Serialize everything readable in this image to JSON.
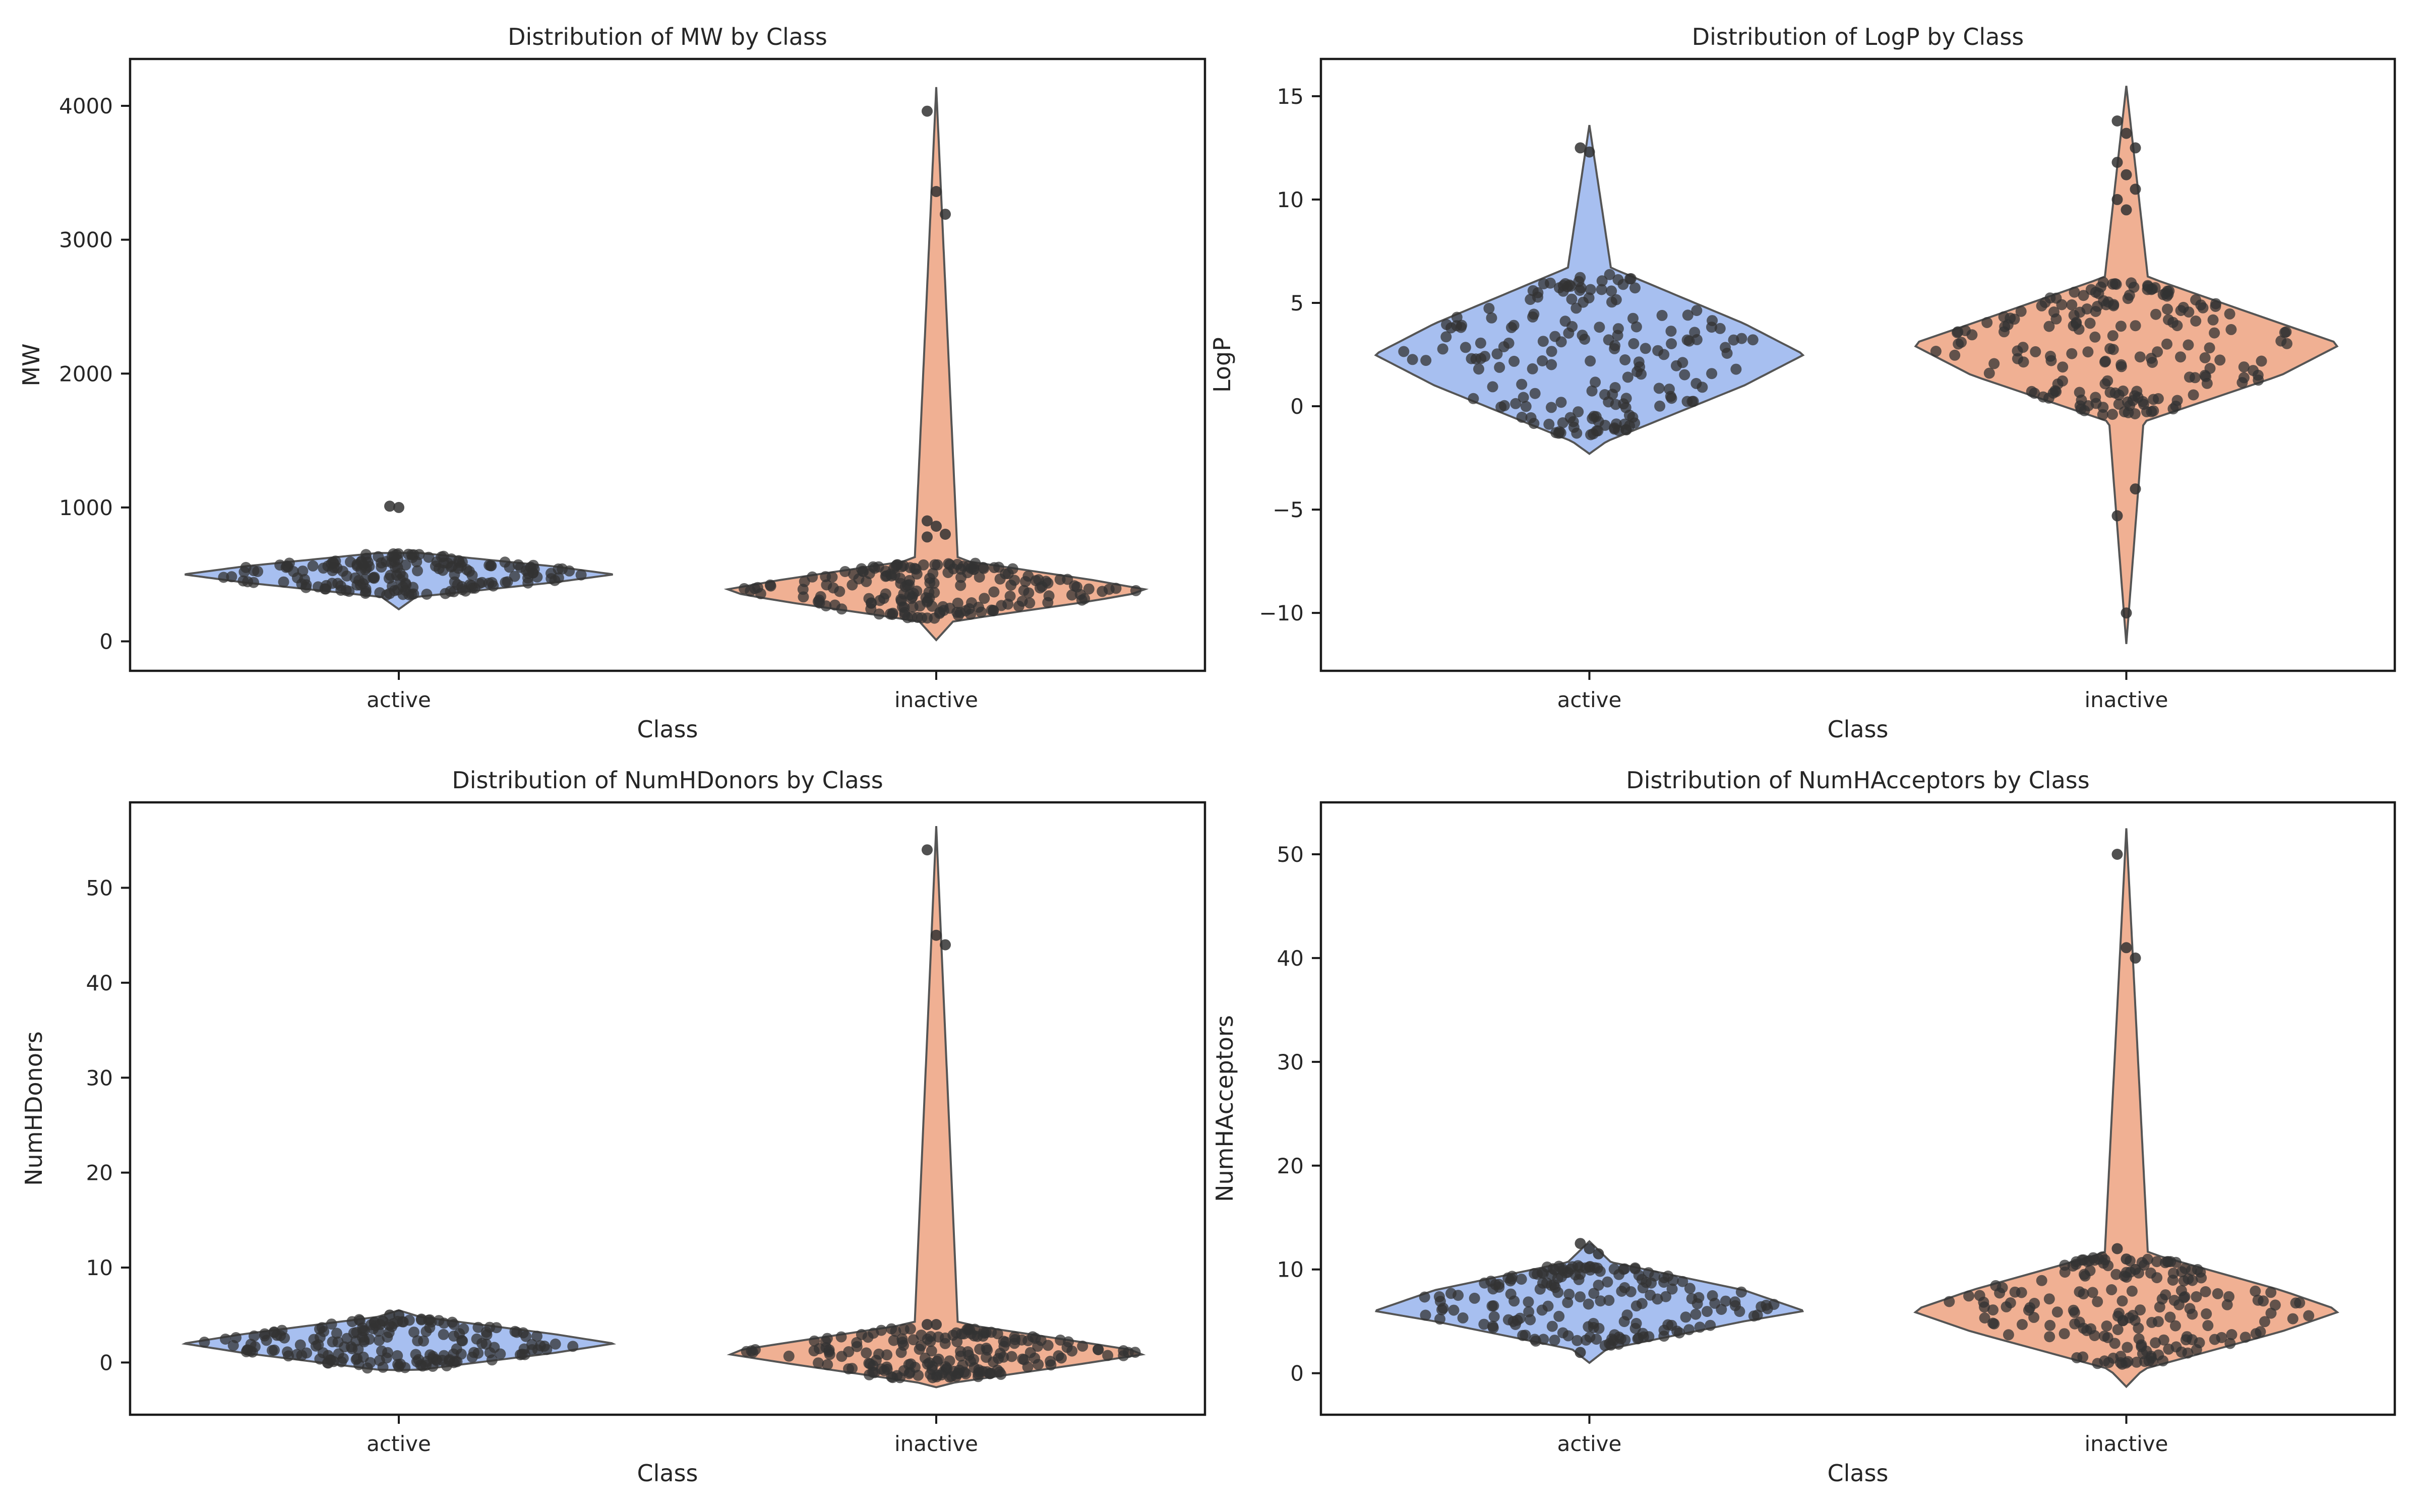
{
  "colors": {
    "active": "#a7bff0",
    "inactive": "#f0b093",
    "violin_edge": "#555555",
    "points": "#333333",
    "axes": "#1a1a1a"
  },
  "chart_data": [
    {
      "type": "violin",
      "title": "Distribution of MW by Class",
      "xlabel": "Class",
      "ylabel": "MW",
      "categories": [
        "active",
        "inactive"
      ],
      "ylim": [
        -220,
        4350
      ],
      "yticks": [
        0,
        1000,
        2000,
        3000,
        4000
      ],
      "ytick_labels": [
        "0",
        "1000",
        "2000",
        "3000",
        "4000"
      ],
      "violins": [
        {
          "name": "active",
          "min": 240,
          "max": 660,
          "q1": 440,
          "median": 500,
          "q3": 560,
          "whisker_top": 1010,
          "outliers": [
            1010,
            1000
          ]
        },
        {
          "name": "inactive",
          "min": 10,
          "max": 4140,
          "q1": 300,
          "median": 380,
          "q3": 460,
          "outliers": [
            3960,
            3360,
            3190,
            900,
            860,
            800,
            780
          ]
        }
      ]
    },
    {
      "type": "violin",
      "title": "Distribution of LogP by Class",
      "xlabel": "Class",
      "ylabel": "LogP",
      "categories": [
        "active",
        "inactive"
      ],
      "ylim": [
        -12.8,
        16.8
      ],
      "yticks": [
        -10,
        -5,
        0,
        5,
        10,
        15
      ],
      "ytick_labels": [
        "−10",
        "−5",
        "0",
        "5",
        "10",
        "15"
      ],
      "violins": [
        {
          "name": "active",
          "min": -2.3,
          "max": 13.6,
          "q1": 1.0,
          "median": 2.5,
          "q3": 4.0,
          "outliers": [
            12.5,
            12.3
          ]
        },
        {
          "name": "inactive",
          "min": -11.5,
          "max": 15.5,
          "q1": 1.5,
          "median": 3.0,
          "q3": 4.0,
          "outliers": [
            13.8,
            13.2,
            12.5,
            11.8,
            11.2,
            10.5,
            10.0,
            9.5,
            -4.0,
            -5.3,
            -10.0
          ]
        }
      ]
    },
    {
      "type": "violin",
      "title": "Distribution of NumHDonors by Class",
      "xlabel": "Class",
      "ylabel": "NumHDonors",
      "categories": [
        "active",
        "inactive"
      ],
      "ylim": [
        -5.5,
        59
      ],
      "yticks": [
        0,
        10,
        20,
        30,
        40,
        50
      ],
      "ytick_labels": [
        "0",
        "10",
        "20",
        "30",
        "40",
        "50"
      ],
      "violins": [
        {
          "name": "active",
          "min": -0.8,
          "max": 5.5,
          "q1": 1,
          "median": 2,
          "q3": 3,
          "outliers": [
            5,
            5
          ]
        },
        {
          "name": "inactive",
          "min": -2.6,
          "max": 56.5,
          "q1": 0,
          "median": 1,
          "q3": 2,
          "outliers": [
            54,
            45,
            44,
            4,
            4
          ]
        }
      ]
    },
    {
      "type": "violin",
      "title": "Distribution of NumHAcceptors by Class",
      "xlabel": "Class",
      "ylabel": "NumHAcceptors",
      "categories": [
        "active",
        "inactive"
      ],
      "ylim": [
        -4,
        55
      ],
      "yticks": [
        0,
        10,
        20,
        30,
        40,
        50
      ],
      "ytick_labels": [
        "0",
        "10",
        "20",
        "30",
        "40",
        "50"
      ],
      "violins": [
        {
          "name": "active",
          "min": 1,
          "max": 12.7,
          "q1": 5,
          "median": 6,
          "q3": 8,
          "outliers": [
            12.5,
            12,
            11.5,
            2
          ]
        },
        {
          "name": "inactive",
          "min": -1.3,
          "max": 52.5,
          "q1": 4,
          "median": 6,
          "q3": 8,
          "outliers": [
            50,
            41,
            40,
            12,
            11,
            10
          ]
        }
      ]
    }
  ]
}
